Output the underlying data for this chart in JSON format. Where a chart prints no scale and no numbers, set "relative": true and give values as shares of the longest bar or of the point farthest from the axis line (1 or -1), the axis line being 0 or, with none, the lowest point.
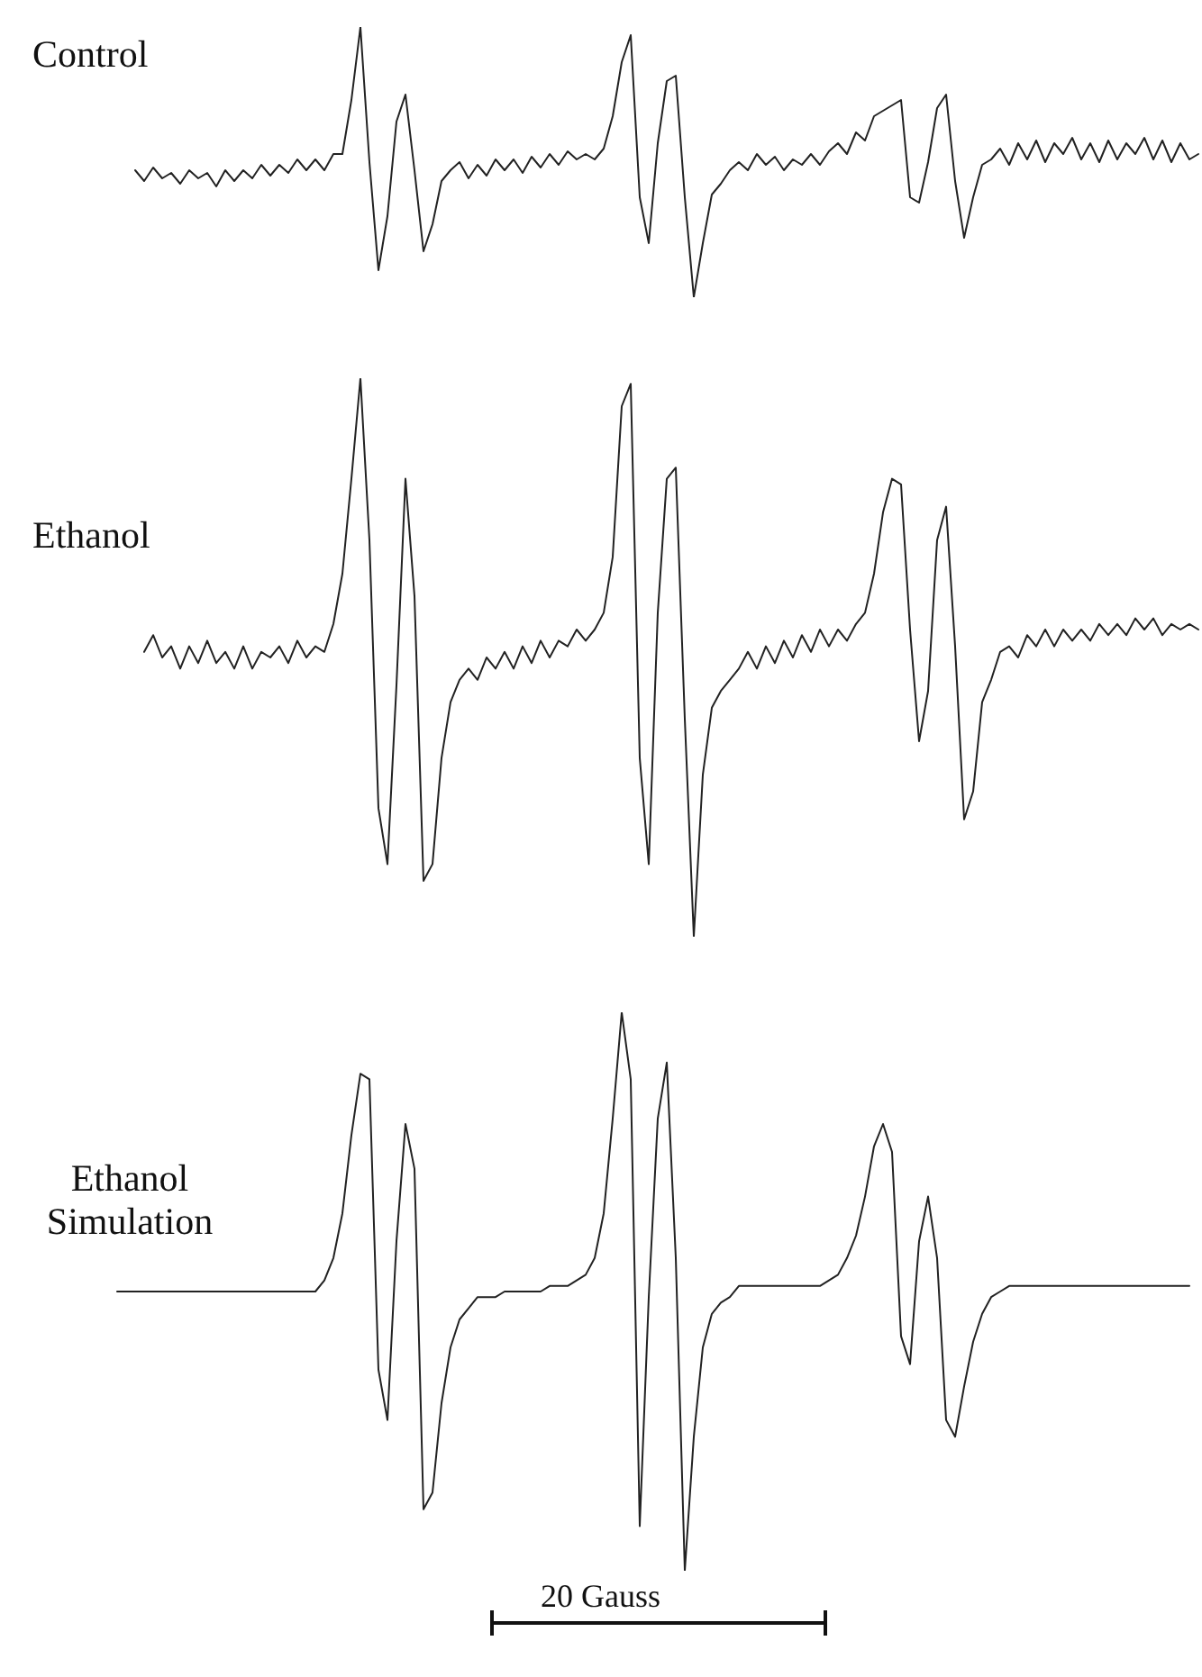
{
  "chart_data": [
    {
      "type": "line",
      "relative": true,
      "categories": [
        null,
        null,
        null,
        null,
        null,
        null,
        null,
        null,
        null,
        null,
        null,
        null,
        null,
        null,
        null,
        null,
        null,
        null,
        null,
        null,
        null,
        null,
        null,
        null,
        null,
        null,
        null,
        null,
        null,
        null,
        null,
        null,
        null,
        null,
        null,
        null,
        null,
        null,
        null,
        null,
        null,
        null,
        null,
        null,
        null,
        null,
        null,
        null,
        null,
        null,
        null,
        null,
        null,
        null,
        null,
        null,
        null,
        null,
        null,
        null,
        null,
        null,
        null,
        null,
        null,
        null,
        null,
        null,
        null,
        null,
        null,
        null,
        null,
        null,
        null,
        null,
        null,
        null,
        null,
        null,
        null,
        null,
        null,
        null,
        null,
        null,
        null,
        null,
        null,
        null,
        null,
        null,
        null,
        null,
        null,
        null,
        null,
        null,
        null,
        null,
        null,
        null,
        null,
        null,
        null,
        null,
        null,
        null,
        null,
        null,
        null,
        null,
        null,
        null,
        null,
        null,
        null,
        null,
        null,
        null,
        null,
        null
      ],
      "series": [
        {
          "name": "Control",
          "color": "#222222",
          "values": [
            null,
            null,
            null,
            0.47,
            0.43,
            0.48,
            0.44,
            0.46,
            0.42,
            0.47,
            0.44,
            0.46,
            0.41,
            0.47,
            0.43,
            0.47,
            0.44,
            0.49,
            0.45,
            0.49,
            0.46,
            0.51,
            0.47,
            0.51,
            0.47,
            0.53,
            0.53,
            0.73,
            1,
            0.5,
            0.1,
            0.3,
            0.65,
            0.75,
            0.47,
            0.17,
            0.27,
            0.43,
            0.47,
            0.5,
            0.44,
            0.49,
            0.45,
            0.51,
            0.47,
            0.51,
            0.46,
            0.52,
            0.48,
            0.53,
            0.49,
            0.54,
            0.51,
            0.53,
            0.51,
            0.55,
            0.67,
            0.87,
            0.97,
            0.37,
            0.2,
            0.57,
            0.8,
            0.82,
            0.37,
            0,
            0.2,
            0.38,
            0.42,
            0.47,
            0.5,
            0.47,
            0.53,
            0.49,
            0.52,
            0.47,
            0.51,
            0.49,
            0.53,
            0.49,
            0.54,
            0.57,
            0.53,
            0.61,
            0.58,
            0.67,
            0.69,
            0.71,
            0.73,
            0.37,
            0.35,
            0.5,
            0.7,
            0.75,
            0.43,
            0.22,
            0.37,
            0.49,
            0.51,
            0.55,
            0.49,
            0.57,
            0.51,
            0.58,
            0.5,
            0.57,
            0.53,
            0.59,
            0.51,
            0.57,
            0.5,
            0.58,
            0.51,
            0.57,
            0.53,
            0.59,
            0.51,
            0.58,
            0.5,
            0.57,
            0.51,
            0.53
          ]
        }
      ]
    },
    {
      "type": "line",
      "relative": true,
      "categories": [
        null,
        null,
        null,
        null,
        null,
        null,
        null,
        null,
        null,
        null,
        null,
        null,
        null,
        null,
        null,
        null,
        null,
        null,
        null,
        null,
        null,
        null,
        null,
        null,
        null,
        null,
        null,
        null,
        null,
        null,
        null,
        null,
        null,
        null,
        null,
        null,
        null,
        null,
        null,
        null,
        null,
        null,
        null,
        null,
        null,
        null,
        null,
        null,
        null,
        null,
        null,
        null,
        null,
        null,
        null,
        null,
        null,
        null,
        null,
        null,
        null,
        null,
        null,
        null,
        null,
        null,
        null,
        null,
        null,
        null,
        null,
        null,
        null,
        null,
        null,
        null,
        null,
        null,
        null,
        null,
        null,
        null,
        null,
        null,
        null,
        null,
        null,
        null,
        null,
        null,
        null,
        null,
        null,
        null,
        null,
        null,
        null,
        null,
        null,
        null,
        null,
        null,
        null,
        null,
        null,
        null,
        null,
        null,
        null,
        null,
        null,
        null,
        null,
        null,
        null,
        null,
        null,
        null,
        null,
        null,
        null,
        null
      ],
      "series": [
        {
          "name": "Ethanol",
          "color": "#222222",
          "values": [
            null,
            null,
            null,
            null,
            0.51,
            0.54,
            0.5,
            0.52,
            0.48,
            0.52,
            0.49,
            0.53,
            0.49,
            0.51,
            0.48,
            0.52,
            0.48,
            0.51,
            0.5,
            0.52,
            0.49,
            0.53,
            0.5,
            0.52,
            0.51,
            0.56,
            0.65,
            0.82,
            1,
            0.71,
            0.23,
            0.13,
            0.45,
            0.82,
            0.61,
            0.1,
            0.13,
            0.32,
            0.42,
            0.46,
            0.48,
            0.46,
            0.5,
            0.48,
            0.51,
            0.48,
            0.52,
            0.49,
            0.53,
            0.5,
            0.53,
            0.52,
            0.55,
            0.53,
            0.55,
            0.58,
            0.68,
            0.95,
            0.99,
            0.32,
            0.13,
            0.58,
            0.82,
            0.84,
            0.39,
            0,
            0.29,
            0.41,
            0.44,
            0.46,
            0.48,
            0.51,
            0.48,
            0.52,
            0.49,
            0.53,
            0.5,
            0.54,
            0.51,
            0.55,
            0.52,
            0.55,
            0.53,
            0.56,
            0.58,
            0.65,
            0.76,
            0.82,
            0.81,
            0.55,
            0.35,
            0.44,
            0.71,
            0.77,
            0.52,
            0.21,
            0.26,
            0.42,
            0.46,
            0.51,
            0.52,
            0.5,
            0.54,
            0.52,
            0.55,
            0.52,
            0.55,
            0.53,
            0.55,
            0.53,
            0.56,
            0.54,
            0.56,
            0.54,
            0.57,
            0.55,
            0.57,
            0.54,
            0.56,
            0.55,
            0.56,
            0.55
          ]
        }
      ]
    },
    {
      "type": "line",
      "relative": true,
      "categories": [
        null,
        null,
        null,
        null,
        null,
        null,
        null,
        null,
        null,
        null,
        null,
        null,
        null,
        null,
        null,
        null,
        null,
        null,
        null,
        null,
        null,
        null,
        null,
        null,
        null,
        null,
        null,
        null,
        null,
        null,
        null,
        null,
        null,
        null,
        null,
        null,
        null,
        null,
        null,
        null,
        null,
        null,
        null,
        null,
        null,
        null,
        null,
        null,
        null,
        null,
        null,
        null,
        null,
        null,
        null,
        null,
        null,
        null,
        null,
        null,
        null,
        null,
        null,
        null,
        null,
        null,
        null,
        null,
        null,
        null,
        null,
        null,
        null,
        null,
        null,
        null,
        null,
        null,
        null,
        null,
        null,
        null,
        null,
        null,
        null,
        null,
        null,
        null,
        null,
        null,
        null,
        null,
        null,
        null,
        null,
        null,
        null,
        null,
        null,
        null,
        null,
        null,
        null,
        null,
        null,
        null,
        null,
        null,
        null,
        null,
        null,
        null,
        null,
        null,
        null,
        null,
        null,
        null,
        null,
        null,
        null,
        null
      ],
      "series": [
        {
          "name": "Ethanol Simulation",
          "color": "#222222",
          "values": [
            null,
            0.5,
            0.5,
            0.5,
            0.5,
            0.5,
            0.5,
            0.5,
            0.5,
            0.5,
            0.5,
            0.5,
            0.5,
            0.5,
            0.5,
            0.5,
            0.5,
            0.5,
            0.5,
            0.5,
            0.5,
            0.5,
            0.5,
            0.5,
            0.52,
            0.56,
            0.64,
            0.78,
            0.89,
            0.88,
            0.36,
            0.27,
            0.59,
            0.8,
            0.72,
            0.11,
            0.14,
            0.3,
            0.4,
            0.45,
            0.47,
            0.49,
            0.49,
            0.49,
            0.5,
            0.5,
            0.5,
            0.5,
            0.5,
            0.51,
            0.51,
            0.51,
            0.52,
            0.53,
            0.56,
            0.64,
            0.81,
            1,
            0.88,
            0.08,
            0.49,
            0.81,
            0.91,
            0.56,
            0,
            0.24,
            0.4,
            0.46,
            0.48,
            0.49,
            0.51,
            0.51,
            0.51,
            0.51,
            0.51,
            0.51,
            0.51,
            0.51,
            0.51,
            0.51,
            0.52,
            0.53,
            0.56,
            0.6,
            0.67,
            0.76,
            0.8,
            0.75,
            0.42,
            0.37,
            0.59,
            0.67,
            0.56,
            0.27,
            0.24,
            0.33,
            0.41,
            0.46,
            0.49,
            0.5,
            0.51,
            0.51,
            0.51,
            0.51,
            0.51,
            0.51,
            0.51,
            0.51,
            0.51,
            0.51,
            0.51,
            0.51,
            0.51,
            0.51,
            0.51,
            0.51,
            0.51,
            0.51,
            0.51,
            0.51,
            0.51,
            null
          ]
        }
      ],
      "annotations": [
        "20 Gauss"
      ]
    }
  ]
}
